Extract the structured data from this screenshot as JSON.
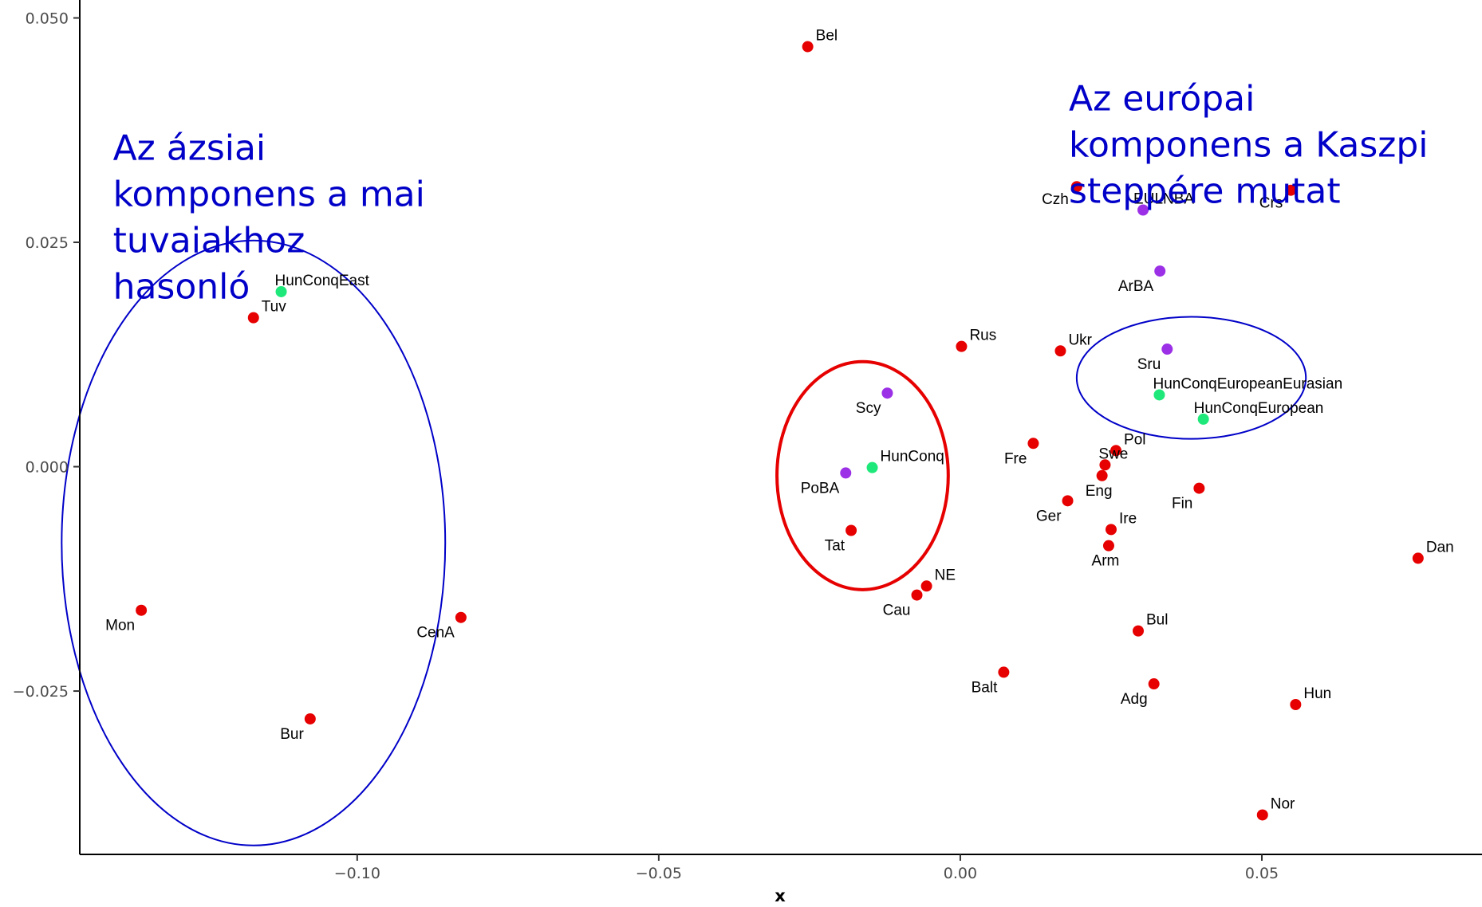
{
  "chart_data": {
    "type": "scatter",
    "xlabel": "x",
    "ylabel": "",
    "xlim": [
      -0.146,
      0.0865
    ],
    "ylim": [
      -0.0432,
      0.052
    ],
    "x_ticks": [
      {
        "value": -0.1,
        "label": "−0.10"
      },
      {
        "value": -0.05,
        "label": "−0.05"
      },
      {
        "value": 0.0,
        "label": "0.00"
      },
      {
        "value": 0.05,
        "label": "0.05"
      }
    ],
    "y_ticks": [
      {
        "value": 0.05,
        "label": "0.050"
      },
      {
        "value": 0.025,
        "label": "0.025"
      },
      {
        "value": 0.0,
        "label": "0.000"
      },
      {
        "value": -0.025,
        "label": "−0.025"
      }
    ],
    "grid": false,
    "colors": {
      "red": "#e60000",
      "purple": "#9b30e6",
      "green": "#1ee87a"
    },
    "points": [
      {
        "label": "Bel",
        "x": -0.0253,
        "y": 0.0468,
        "color": "red",
        "anchor": "ur"
      },
      {
        "label": "Czh",
        "x": 0.0193,
        "y": 0.0312,
        "color": "red",
        "anchor": "l"
      },
      {
        "label": "Crs",
        "x": 0.0548,
        "y": 0.0308,
        "color": "red",
        "anchor": "l"
      },
      {
        "label": "EULNBA",
        "x": 0.0303,
        "y": 0.0286,
        "color": "purple",
        "anchor": "u"
      },
      {
        "label": "ArBA",
        "x": 0.0331,
        "y": 0.0218,
        "color": "purple",
        "anchor": "bl"
      },
      {
        "label": "HunConqEast",
        "x": -0.1126,
        "y": 0.0195,
        "color": "green",
        "anchor": "ul"
      },
      {
        "label": "Tuv",
        "x": -0.1172,
        "y": 0.0166,
        "color": "red",
        "anchor": "ur"
      },
      {
        "label": "Rus",
        "x": 0.0002,
        "y": 0.0134,
        "color": "red",
        "anchor": "ur"
      },
      {
        "label": "Ukr",
        "x": 0.0166,
        "y": 0.0129,
        "color": "red",
        "anchor": "ur"
      },
      {
        "label": "Sru",
        "x": 0.0343,
        "y": 0.0131,
        "color": "purple",
        "anchor": "bl"
      },
      {
        "label": "Scy",
        "x": -0.0121,
        "y": 0.0082,
        "color": "purple",
        "anchor": "bl"
      },
      {
        "label": "HunConqEuropeanEurasian",
        "x": 0.033,
        "y": 0.008,
        "color": "green",
        "anchor": "ul"
      },
      {
        "label": "HunConqEuropean",
        "x": 0.0403,
        "y": 0.0053,
        "color": "green",
        "anchor": "u"
      },
      {
        "label": "Fre",
        "x": 0.0121,
        "y": 0.0026,
        "color": "red",
        "anchor": "bl"
      },
      {
        "label": "Pol",
        "x": 0.0258,
        "y": 0.0018,
        "color": "red",
        "anchor": "ur"
      },
      {
        "label": "Swe",
        "x": 0.024,
        "y": 0.0002,
        "color": "red",
        "anchor": "ul"
      },
      {
        "label": "HunConq",
        "x": -0.0146,
        "y": -0.0001,
        "color": "green",
        "anchor": "ur"
      },
      {
        "label": "PoBA",
        "x": -0.019,
        "y": -0.0007,
        "color": "purple",
        "anchor": "bl"
      },
      {
        "label": "Eng",
        "x": 0.0235,
        "y": -0.001,
        "color": "red",
        "anchor": "b"
      },
      {
        "label": "Fin",
        "x": 0.0396,
        "y": -0.0024,
        "color": "red",
        "anchor": "bl"
      },
      {
        "label": "Ger",
        "x": 0.0178,
        "y": -0.0038,
        "color": "red",
        "anchor": "bl"
      },
      {
        "label": "Ire",
        "x": 0.025,
        "y": -0.007,
        "color": "red",
        "anchor": "ur"
      },
      {
        "label": "Tat",
        "x": -0.0181,
        "y": -0.0071,
        "color": "red",
        "anchor": "bl"
      },
      {
        "label": "Arm",
        "x": 0.0246,
        "y": -0.0088,
        "color": "red",
        "anchor": "b"
      },
      {
        "label": "Dan",
        "x": 0.0759,
        "y": -0.0102,
        "color": "red",
        "anchor": "ur"
      },
      {
        "label": "NE",
        "x": -0.0056,
        "y": -0.0133,
        "color": "red",
        "anchor": "ur"
      },
      {
        "label": "Cau",
        "x": -0.0072,
        "y": -0.0143,
        "color": "red",
        "anchor": "bl"
      },
      {
        "label": "Mon",
        "x": -0.1358,
        "y": -0.016,
        "color": "red",
        "anchor": "bl"
      },
      {
        "label": "CenA",
        "x": -0.0828,
        "y": -0.0168,
        "color": "red",
        "anchor": "bl"
      },
      {
        "label": "Bul",
        "x": 0.0295,
        "y": -0.0183,
        "color": "red",
        "anchor": "ur"
      },
      {
        "label": "Balt",
        "x": 0.0072,
        "y": -0.0229,
        "color": "red",
        "anchor": "bl"
      },
      {
        "label": "Adg",
        "x": 0.0321,
        "y": -0.0242,
        "color": "red",
        "anchor": "bl"
      },
      {
        "label": "Hun",
        "x": 0.0556,
        "y": -0.0265,
        "color": "red",
        "anchor": "ur"
      },
      {
        "label": "Bur",
        "x": -0.1078,
        "y": -0.0281,
        "color": "red",
        "anchor": "bl"
      },
      {
        "label": "Nor",
        "x": 0.0501,
        "y": -0.0388,
        "color": "red",
        "anchor": "ur"
      }
    ],
    "ellipses": [
      {
        "name": "asian-cluster",
        "cx": -0.1172,
        "cy": -0.0085,
        "rx": 0.0318,
        "ry": 0.0337,
        "color": "#0000c8",
        "stroke_width": 2
      },
      {
        "name": "hunconq-cluster",
        "cx": -0.0162,
        "cy": -0.001,
        "rx": 0.0142,
        "ry": 0.0127,
        "color": "#e60000",
        "stroke_width": 4
      },
      {
        "name": "european-cluster",
        "cx": 0.0383,
        "cy": 0.0099,
        "rx": 0.019,
        "ry": 0.0068,
        "color": "#0000c8",
        "stroke_width": 2
      }
    ],
    "annotations": [
      {
        "name": "asian-annotation",
        "lines": [
          "Az ázsiai",
          "komponens a mai",
          "tuvaiakhoz",
          "hasonló"
        ],
        "x": -0.1405,
        "y": 0.0342
      },
      {
        "name": "european-annotation",
        "lines": [
          "Az európai",
          "komponens a Kaszpi",
          "steppére mutat"
        ],
        "x": 0.018,
        "y": 0.0397
      }
    ]
  }
}
